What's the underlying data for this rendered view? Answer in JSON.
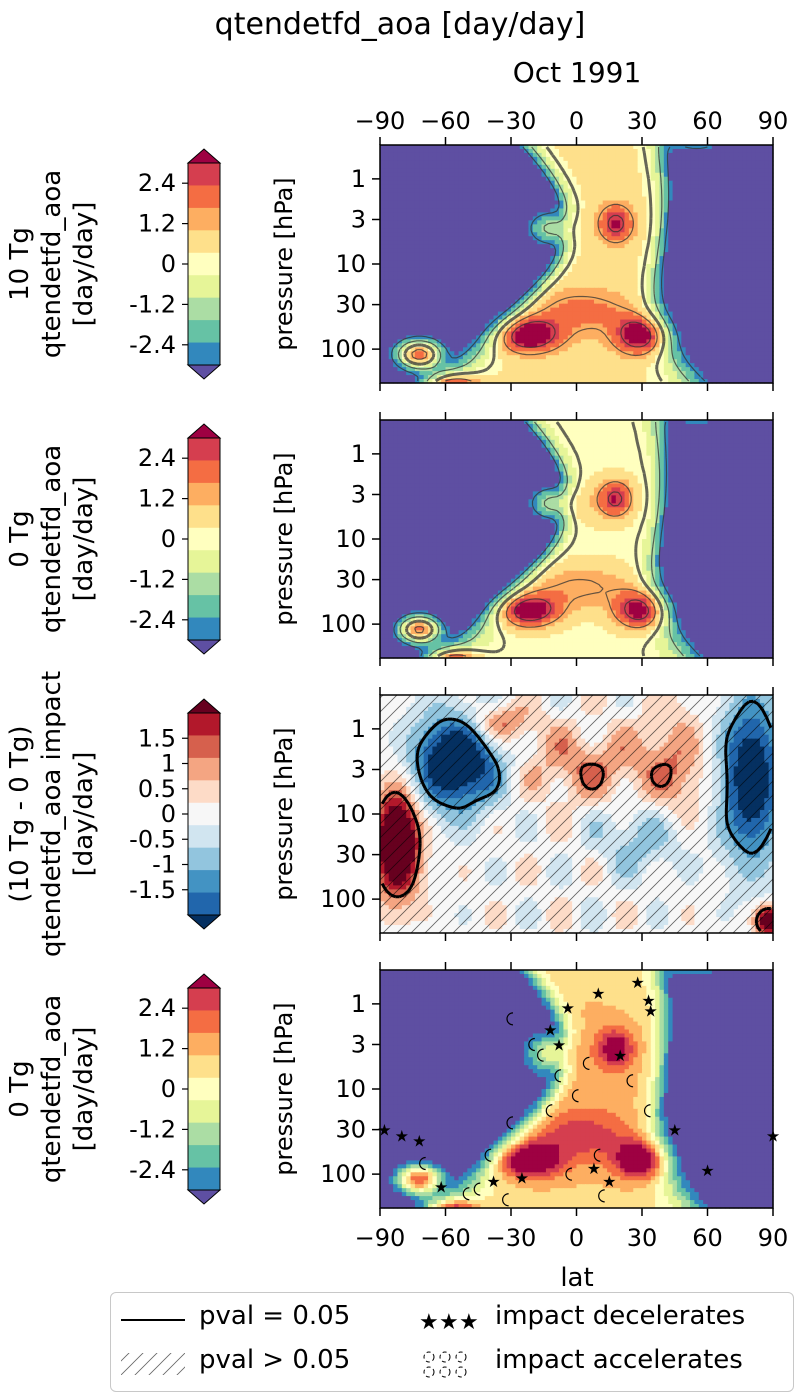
{
  "figure": {
    "title": "qtendetfd_aoa [day/day]",
    "date_label": "Oct 1991",
    "xlabel": "lat"
  },
  "chart_data": [
    {
      "type": "heatmap",
      "row_label": [
        "10 Tg",
        "qtendetfd_aoa",
        "[day/day]"
      ],
      "ylabel": "pressure [hPa]",
      "x_ticks": [
        -90,
        -60,
        -30,
        0,
        30,
        60,
        90
      ],
      "x_range": [
        -90,
        90
      ],
      "y_ticks": [
        1,
        3,
        10,
        30,
        100
      ],
      "y_scale": "log",
      "y_range": [
        0.4,
        250
      ],
      "colorbar_ticks": [
        "2.4",
        "1.2",
        "0",
        "-1.2",
        "-2.4"
      ],
      "colorbar_range": [
        -3.0,
        3.0
      ],
      "contour_lines": true,
      "hatching": false,
      "markers": false
    },
    {
      "type": "heatmap",
      "row_label": [
        "0 Tg",
        "qtendetfd_aoa",
        "[day/day]"
      ],
      "ylabel": "pressure [hPa]",
      "x_ticks": [
        -90,
        -60,
        -30,
        0,
        30,
        60,
        90
      ],
      "x_range": [
        -90,
        90
      ],
      "y_ticks": [
        1,
        3,
        10,
        30,
        100
      ],
      "y_scale": "log",
      "y_range": [
        0.4,
        250
      ],
      "colorbar_ticks": [
        "2.4",
        "1.2",
        "0",
        "-1.2",
        "-2.4"
      ],
      "colorbar_range": [
        -3.0,
        3.0
      ],
      "contour_lines": true,
      "hatching": false,
      "markers": false
    },
    {
      "type": "heatmap",
      "row_label": [
        "(10 Tg - 0 Tg)",
        "qtendetfd_aoa impact",
        "[day/day]"
      ],
      "ylabel": "pressure [hPa]",
      "x_ticks": [
        -90,
        -60,
        -30,
        0,
        30,
        60,
        90
      ],
      "x_range": [
        -90,
        90
      ],
      "y_ticks": [
        1,
        3,
        10,
        30,
        100
      ],
      "y_scale": "log",
      "y_range": [
        0.4,
        250
      ],
      "colorbar_ticks": [
        "1.5",
        "1",
        "0.5",
        "0",
        "-0.5",
        "-1",
        "-1.5"
      ],
      "colorbar_range": [
        -2.0,
        2.0
      ],
      "contour_lines": true,
      "hatching": true,
      "markers": false
    },
    {
      "type": "heatmap",
      "row_label": [
        "0 Tg",
        "qtendetfd_aoa",
        "[day/day]"
      ],
      "ylabel": "pressure [hPa]",
      "x_ticks": [
        -90,
        -60,
        -30,
        0,
        30,
        60,
        90
      ],
      "x_range": [
        -90,
        90
      ],
      "y_ticks": [
        1,
        3,
        10,
        30,
        100
      ],
      "y_scale": "log",
      "y_range": [
        0.4,
        250
      ],
      "colorbar_ticks": [
        "2.4",
        "1.2",
        "0",
        "-1.2",
        "-2.4"
      ],
      "colorbar_range": [
        -3.0,
        3.0
      ],
      "contour_lines": false,
      "hatching": false,
      "markers": true
    }
  ],
  "legend": {
    "items": [
      {
        "symbol": "solid-line",
        "label": "pval = 0.05"
      },
      {
        "symbol": "stars",
        "label": "impact decelerates"
      },
      {
        "symbol": "hatch",
        "label": "pval > 0.05"
      },
      {
        "symbol": "circles",
        "label": "impact accelerates"
      }
    ]
  },
  "colors": {
    "spectral": [
      "#5e4fa2",
      "#3288bd",
      "#66c2a5",
      "#abdda4",
      "#e6f598",
      "#ffffbf",
      "#fee08b",
      "#fdae61",
      "#f46d43",
      "#d53e4f",
      "#9e0142"
    ],
    "rdbu": [
      "#053061",
      "#2166ac",
      "#4393c3",
      "#92c5de",
      "#d1e5f0",
      "#f7f7f7",
      "#fddbc7",
      "#f4a582",
      "#d6604d",
      "#b2182b",
      "#67001f"
    ]
  }
}
